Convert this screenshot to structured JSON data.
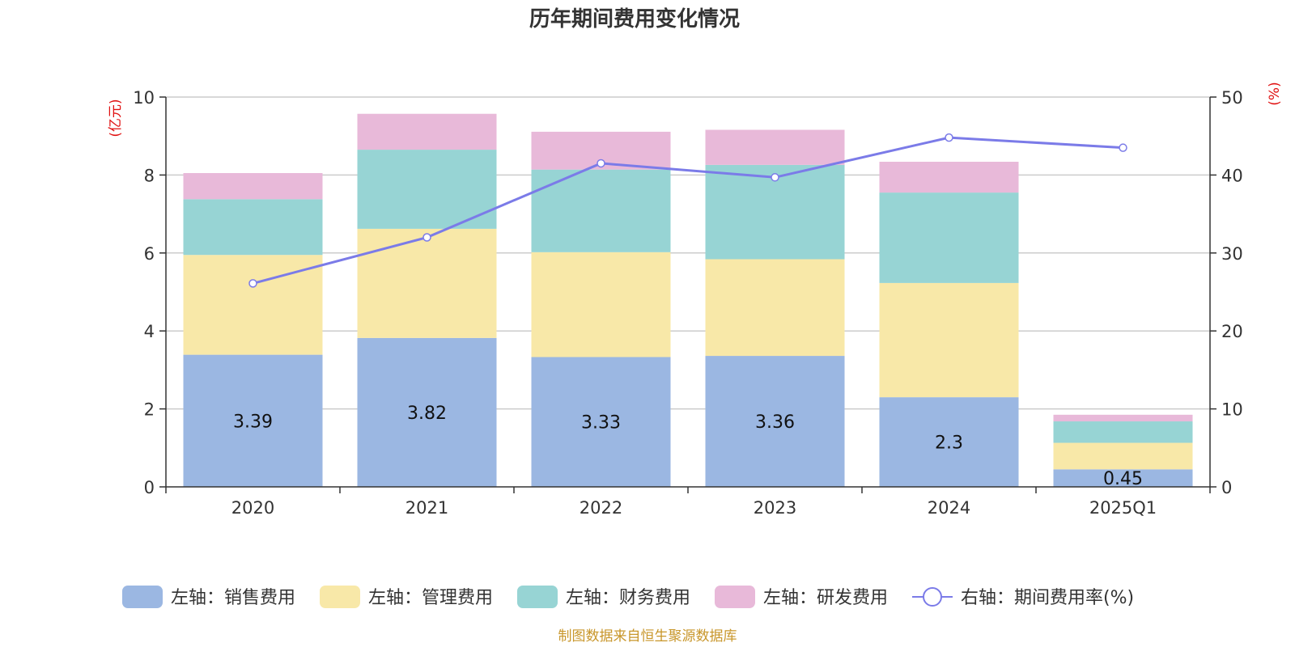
{
  "chart_data": {
    "type": "bar",
    "stacked": true,
    "title": "历年期间费用变化情况",
    "categories": [
      "2020",
      "2021",
      "2022",
      "2023",
      "2024",
      "2025Q1"
    ],
    "left_axis": {
      "unit": "(亿元)",
      "ylim": [
        0,
        10
      ],
      "ticks": [
        "0",
        "2",
        "4",
        "6",
        "8",
        "10"
      ]
    },
    "right_axis": {
      "unit": "(%)",
      "ylim": [
        0,
        50
      ],
      "ticks": [
        "0",
        "10",
        "20",
        "30",
        "40",
        "50"
      ]
    },
    "grid": true,
    "legend_position": "bottom",
    "series": [
      {
        "name": "左轴：销售费用",
        "axis": "left",
        "color": "#9bb7e2",
        "values": [
          3.39,
          3.82,
          3.33,
          3.36,
          2.3,
          0.45
        ],
        "labels": [
          "3.39",
          "3.82",
          "3.33",
          "3.36",
          "2.3",
          "0.45"
        ]
      },
      {
        "name": "左轴：管理费用",
        "axis": "left",
        "color": "#f8e8a8",
        "values": [
          2.56,
          2.8,
          2.69,
          2.48,
          2.93,
          0.68
        ]
      },
      {
        "name": "左轴：财务费用",
        "axis": "left",
        "color": "#97d4d4",
        "values": [
          1.43,
          2.03,
          2.12,
          2.42,
          2.32,
          0.55
        ]
      },
      {
        "name": "左轴：研发费用",
        "axis": "left",
        "color": "#e8b9d9",
        "values": [
          0.67,
          0.92,
          0.97,
          0.9,
          0.79,
          0.17
        ]
      },
      {
        "name": "右轴：期间费用率(%)",
        "axis": "right",
        "type": "line",
        "color": "#7b7be8",
        "values": [
          26.1,
          32.0,
          41.5,
          39.7,
          44.8,
          43.5
        ]
      }
    ],
    "source": "制图数据来自恒生聚源数据库"
  }
}
